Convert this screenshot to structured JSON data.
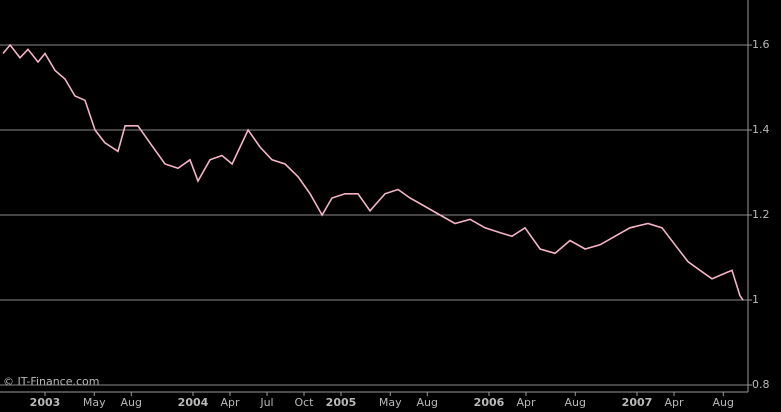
{
  "chart_data": {
    "type": "line",
    "watermark": "© IT-Finance.com",
    "x": [
      2002.716,
      2002.764,
      2002.831,
      2002.885,
      2002.953,
      2003.0,
      2003.068,
      2003.135,
      2003.203,
      2003.27,
      2003.338,
      2003.405,
      2003.493,
      2003.541,
      2003.628,
      2003.709,
      2003.811,
      2003.899,
      2003.98,
      2004.034,
      2004.115,
      2004.196,
      2004.264,
      2004.372,
      2004.453,
      2004.534,
      2004.622,
      2004.71,
      2004.791,
      2004.872,
      2004.939,
      2005.027,
      2005.115,
      2005.196,
      2005.297,
      2005.385,
      2005.466,
      2005.568,
      2005.669,
      2005.77,
      2005.872,
      2005.973,
      2006.061,
      2006.155,
      2006.243,
      2006.345,
      2006.446,
      2006.547,
      2006.649,
      2006.75,
      2006.851,
      2006.953,
      2007.074,
      2007.169,
      2007.257,
      2007.345,
      2007.426,
      2007.507,
      2007.574,
      2007.642,
      2007.696,
      2007.716
    ],
    "series": [
      {
        "color": "#f4b4c8",
        "values": [
          1.58,
          1.6,
          1.57,
          1.59,
          1.56,
          1.58,
          1.54,
          1.52,
          1.48,
          1.47,
          1.4,
          1.37,
          1.35,
          1.41,
          1.41,
          1.37,
          1.32,
          1.31,
          1.33,
          1.28,
          1.33,
          1.34,
          1.32,
          1.4,
          1.36,
          1.33,
          1.32,
          1.29,
          1.25,
          1.2,
          1.24,
          1.25,
          1.25,
          1.21,
          1.25,
          1.26,
          1.24,
          1.22,
          1.2,
          1.18,
          1.19,
          1.17,
          1.16,
          1.15,
          1.17,
          1.12,
          1.11,
          1.14,
          1.12,
          1.13,
          1.15,
          1.17,
          1.18,
          1.17,
          1.13,
          1.09,
          1.07,
          1.05,
          1.06,
          1.07,
          1.01,
          1.0
        ]
      }
    ],
    "xlim": [
      2002.696,
      2007.75
    ],
    "xticks": [
      {
        "value": 2003,
        "label": "2003"
      },
      {
        "value": 2003.333,
        "label": "May"
      },
      {
        "value": 2003.583,
        "label": "Aug"
      },
      {
        "value": 2004,
        "label": "2004"
      },
      {
        "value": 2004.25,
        "label": "Apr"
      },
      {
        "value": 2004.5,
        "label": "Jul"
      },
      {
        "value": 2004.75,
        "label": "Oct"
      },
      {
        "value": 2005,
        "label": "2005"
      },
      {
        "value": 2005.333,
        "label": "May"
      },
      {
        "value": 2005.583,
        "label": "Aug"
      },
      {
        "value": 2006,
        "label": "2006"
      },
      {
        "value": 2006.25,
        "label": "Apr"
      },
      {
        "value": 2006.583,
        "label": "Aug"
      },
      {
        "value": 2007,
        "label": "2007"
      },
      {
        "value": 2007.25,
        "label": "Apr"
      },
      {
        "value": 2007.583,
        "label": "Aug"
      }
    ],
    "ylim": [
      0.8,
      1.706
    ],
    "yticks": [
      0.8,
      1,
      1.2,
      1.4,
      1.6
    ],
    "grid": true
  }
}
